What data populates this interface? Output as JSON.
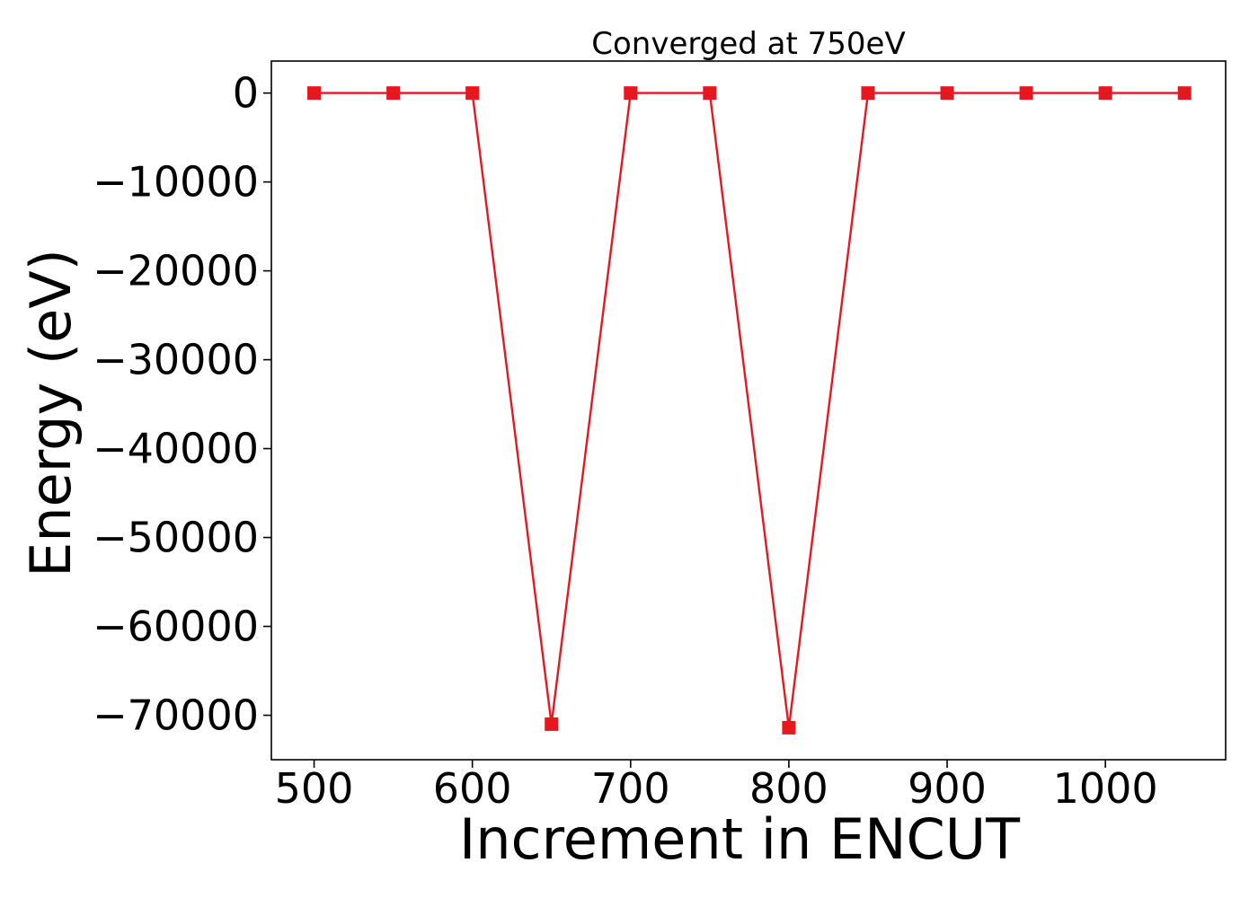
{
  "chart_data": {
    "type": "line",
    "title": "Converged at 750eV",
    "xlabel": "Increment in ENCUT",
    "ylabel": "Energy (eV)",
    "x": [
      500,
      550,
      600,
      650,
      700,
      750,
      800,
      850,
      900,
      950,
      1000,
      1050
    ],
    "series": [
      {
        "values": [
          0,
          0,
          0,
          -71000,
          0,
          0,
          -71400,
          0,
          0,
          0,
          0,
          0
        ],
        "color": "#e8171f",
        "marker": "square"
      }
    ],
    "xlim": [
      473,
      1076
    ],
    "ylim": [
      -75000,
      3600
    ],
    "xticks": [
      500,
      600,
      700,
      800,
      900,
      1000
    ],
    "xtick_labels": [
      "500",
      "600",
      "700",
      "800",
      "900",
      "1000"
    ],
    "yticks": [
      0,
      -10000,
      -20000,
      -30000,
      -40000,
      -50000,
      -60000,
      -70000
    ],
    "ytick_labels": [
      "0",
      "−10000",
      "−20000",
      "−30000",
      "−40000",
      "−50000",
      "−60000",
      "−70000"
    ],
    "grid": false,
    "legend": "none"
  }
}
